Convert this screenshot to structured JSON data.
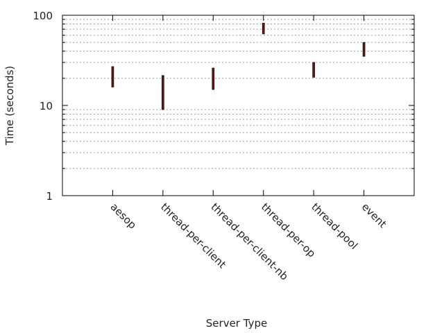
{
  "chart_data": {
    "type": "range",
    "title": "",
    "xlabel": "Server Type",
    "ylabel": "Time (seconds)",
    "yscale": "log",
    "ylim": [
      1,
      100
    ],
    "yticks": [
      {
        "value": 1,
        "label": "1"
      },
      {
        "value": 10,
        "label": "10"
      },
      {
        "value": 100,
        "label": "100"
      }
    ],
    "grid": true,
    "legend": "none",
    "bar_color": "#6b1414",
    "categories": [
      "aesop",
      "thread-per-client",
      "thread-per-client-nb",
      "thread-per-op",
      "thread-pool",
      "event"
    ],
    "series": [
      {
        "low": [
          16,
          9,
          15,
          62,
          20.5,
          35
        ],
        "high": [
          27,
          21.5,
          26,
          82,
          30,
          50
        ]
      }
    ]
  }
}
